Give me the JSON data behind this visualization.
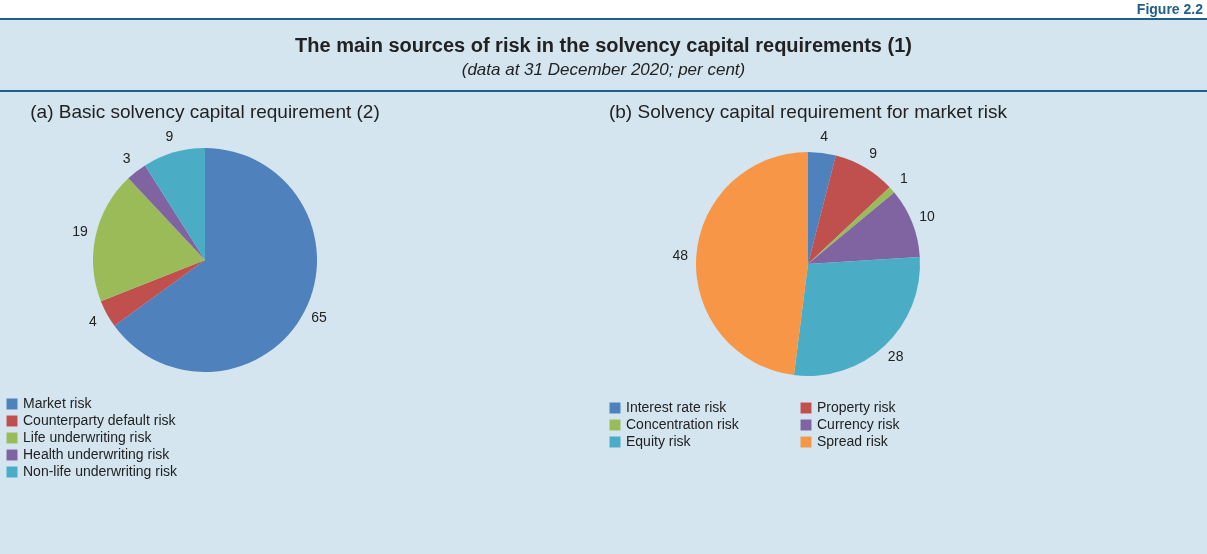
{
  "chart_data": [
    {
      "type": "other",
      "title": "The main sources of risk in the solvency capital requirements (1)",
      "subtitle": "(data at 31 December 2020; per cent)",
      "annotations": [
        "Figure 2.2"
      ]
    },
    {
      "type": "pie",
      "title": "(a) Basic solvency capital requirement (2)",
      "categories": [
        "Market risk",
        "Counterparty default risk",
        "Life underwriting risk",
        "Health underwriting risk",
        "Non-life underwriting risk"
      ],
      "values": [
        65,
        4,
        19,
        3,
        9
      ],
      "colors": [
        "#4f81bd",
        "#c0504d",
        "#9bbb59",
        "#8064a2",
        "#4bacc6"
      ],
      "data_labels": true,
      "legend": "bottom"
    },
    {
      "type": "pie",
      "title": "(b) Solvency capital requirement for market risk",
      "categories": [
        "Interest rate risk",
        "Property risk",
        "Concentration risk",
        "Currency risk",
        "Equity risk",
        "Spread risk"
      ],
      "values": [
        4,
        9,
        1,
        10,
        28,
        48
      ],
      "colors": [
        "#4f81bd",
        "#c0504d",
        "#9bbb59",
        "#8064a2",
        "#4bacc6",
        "#f79646"
      ],
      "data_labels": true,
      "legend": "bottom"
    }
  ]
}
